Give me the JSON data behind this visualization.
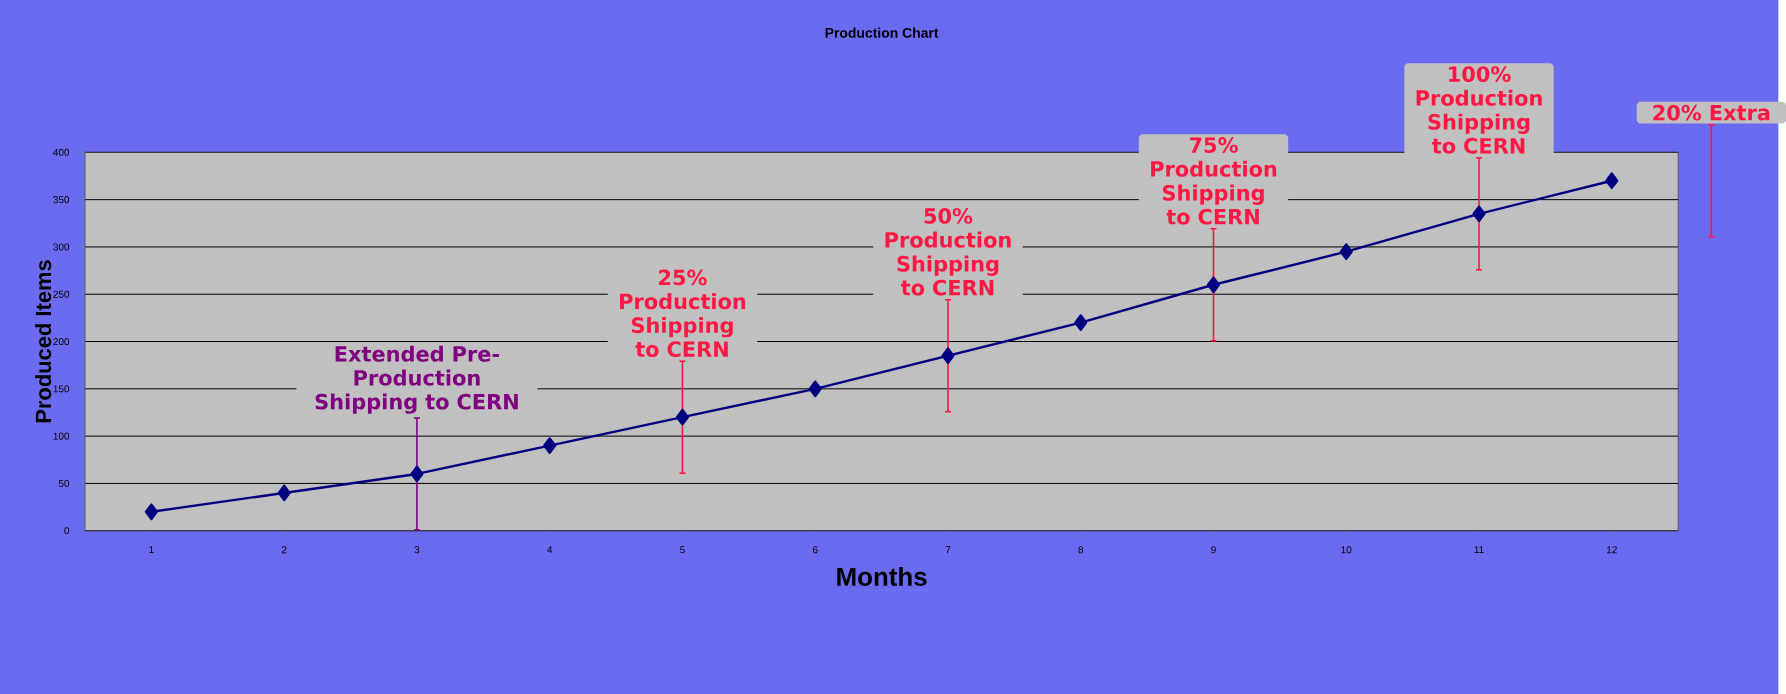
{
  "chart_data": {
    "type": "line",
    "title": "Production Chart",
    "xlabel": "Months",
    "ylabel": "Produced Items",
    "categories": [
      "1",
      "2",
      "3",
      "4",
      "5",
      "6",
      "7",
      "8",
      "9",
      "10",
      "11",
      "12"
    ],
    "series": [
      {
        "color": "#000080",
        "values": [
          20,
          40,
          60,
          90,
          120,
          150,
          185,
          220,
          260,
          295,
          335,
          370
        ]
      }
    ],
    "ylim": [
      0,
      400
    ],
    "yticks": [
      0,
      50,
      100,
      150,
      200,
      250,
      300,
      350,
      400
    ],
    "grid": "y",
    "marker": "diamond",
    "line_style": "solid",
    "annotations": [
      {
        "text": "Extended Pre-Production Shipping to CERN",
        "x": "3",
        "y": 60
      },
      {
        "text": "25% Production Shipping to CERN",
        "x": "5",
        "y": 120
      },
      {
        "text": "50% Production Shipping to CERN",
        "x": "7",
        "y": 185
      },
      {
        "text": "75% Production Shipping to CERN",
        "x": "9",
        "y": 260
      },
      {
        "text": "100% Production Shipping to CERN",
        "x": "11",
        "y": 335
      },
      "20% Extra"
    ]
  }
}
